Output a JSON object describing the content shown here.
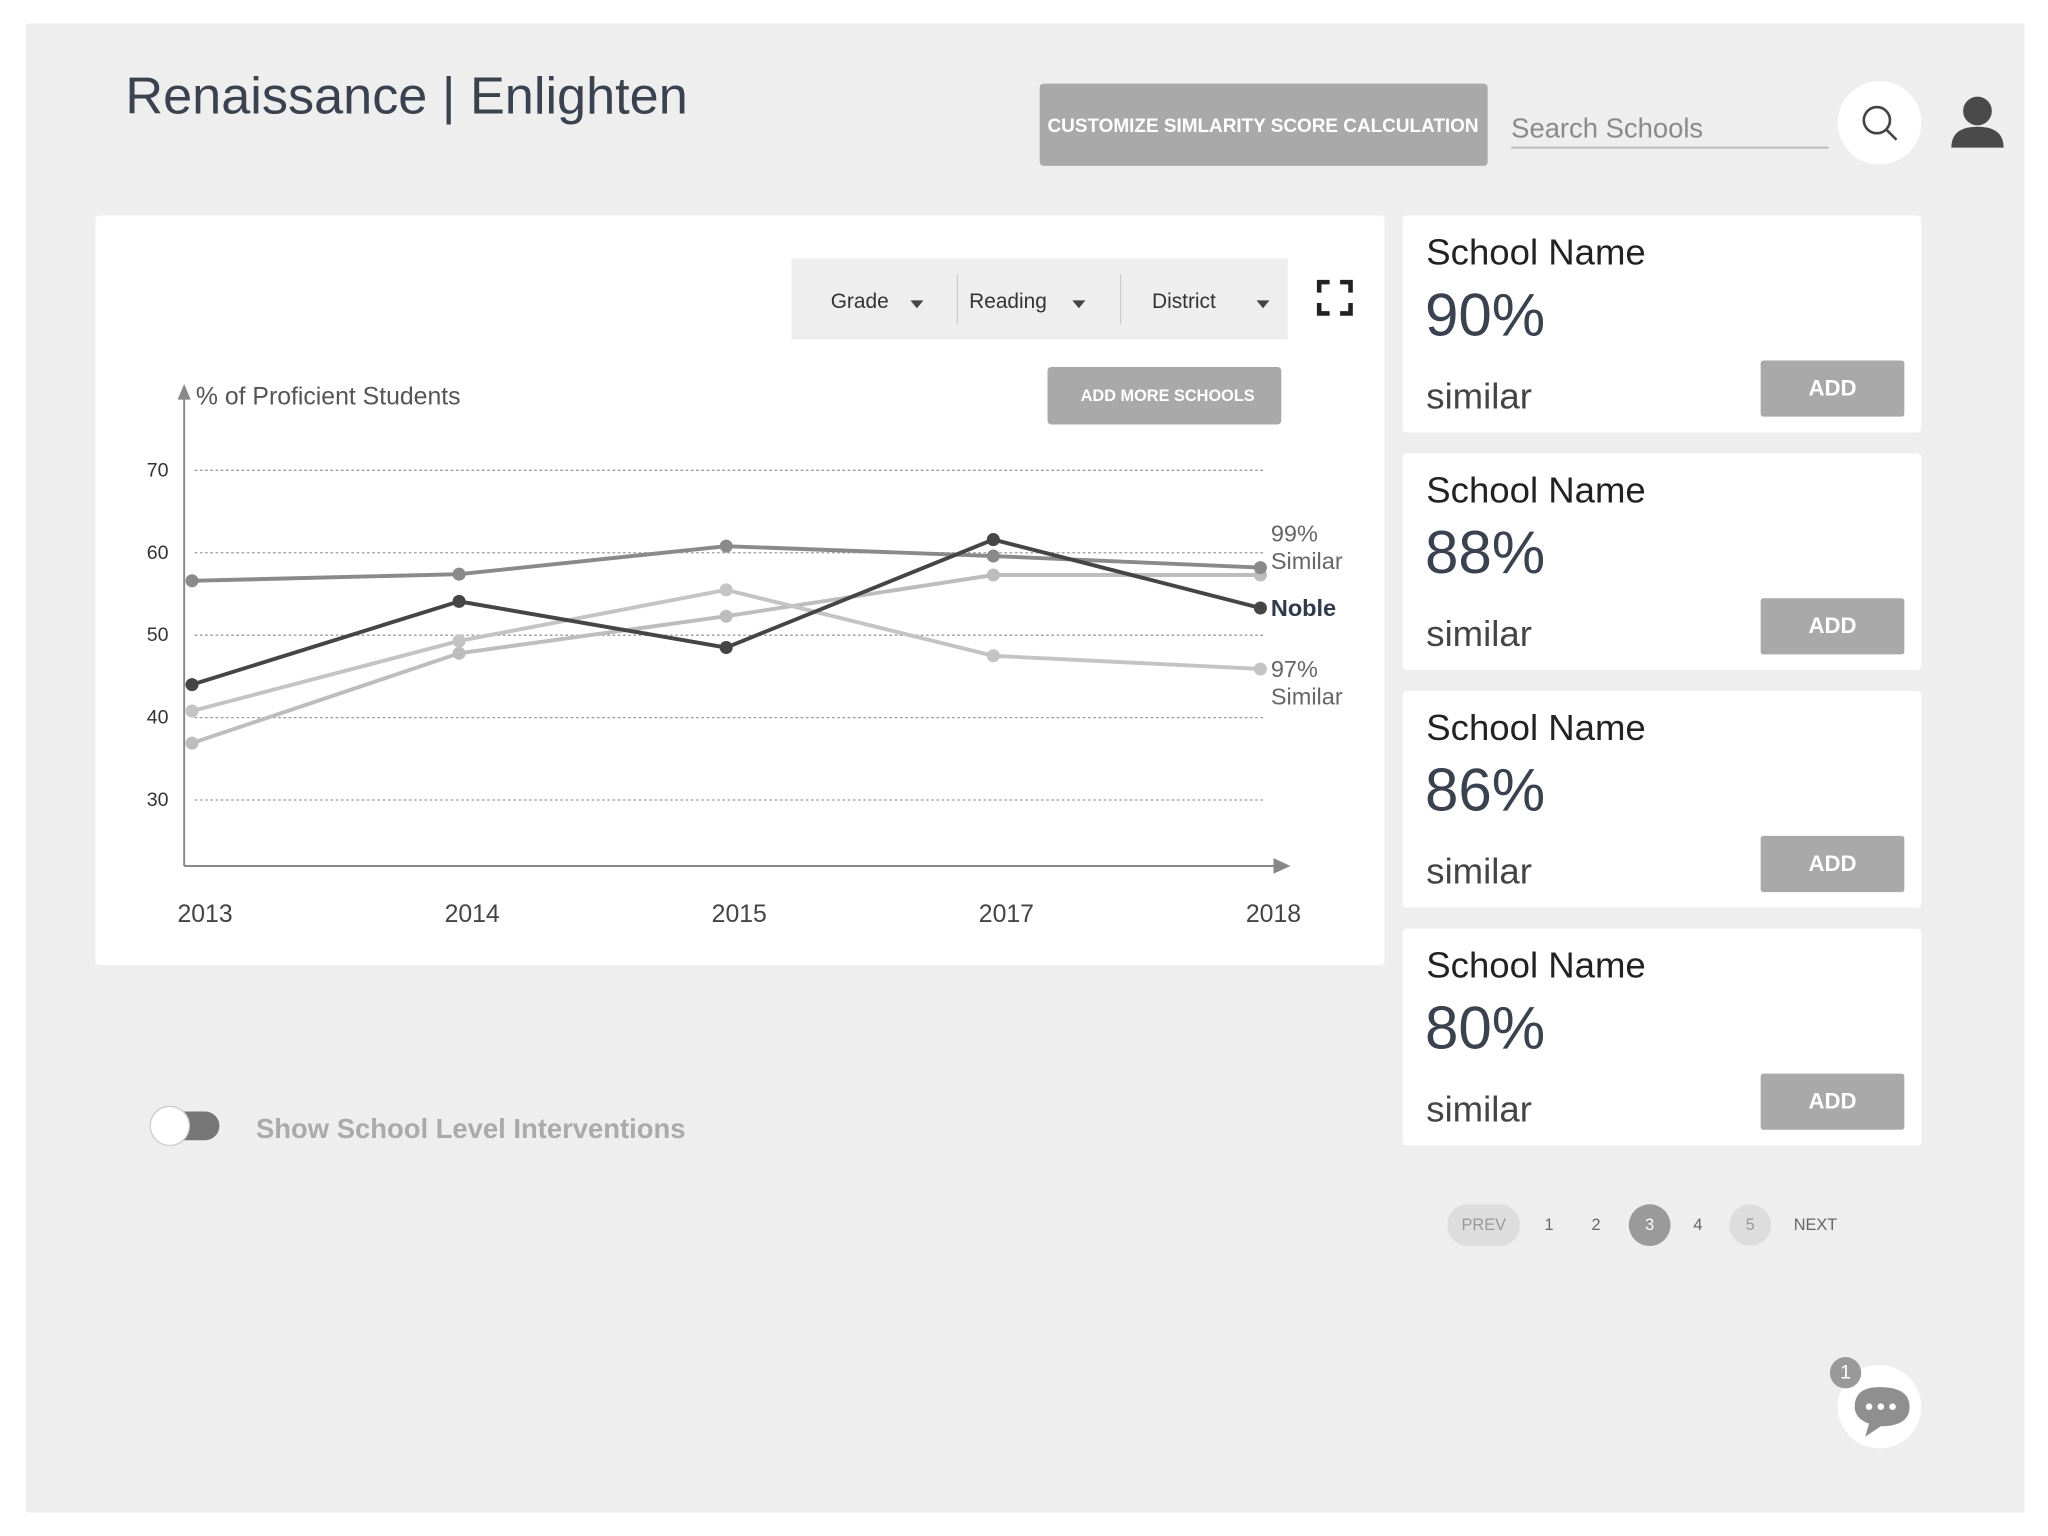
{
  "header": {
    "title": "Renaissance | Enlighten",
    "customize_button": "CUSTOMIZE SIMLARITY SCORE CALCULATION",
    "search_placeholder": "Search Schools"
  },
  "filters": [
    "Grade",
    "Reading",
    "District"
  ],
  "add_more_button": "ADD MORE SCHOOLS",
  "chart_data": {
    "type": "line",
    "y_label": "% of Proficient Students",
    "categories": [
      "2013",
      "2014",
      "2015",
      "2017",
      "2018"
    ],
    "ylim": [
      22,
      80
    ],
    "yticks": [
      30,
      40,
      50,
      60,
      70
    ],
    "grid": true,
    "series": [
      {
        "color": "#bdbdbd",
        "values": [
          36.9,
          47.8,
          52.3,
          57.3,
          57.3
        ]
      },
      {
        "label_lines": [
          "97%",
          "Similar"
        ],
        "color": "#c4c4c4",
        "values": [
          40.8,
          49.3,
          55.5,
          47.5,
          45.9
        ]
      },
      {
        "label_lines": [
          "99%",
          "Similar"
        ],
        "color": "#8a8a8a",
        "values": [
          56.6,
          57.4,
          60.8,
          59.6,
          58.2
        ]
      },
      {
        "name": "Noble",
        "color": "#454545",
        "values": [
          44.0,
          54.1,
          48.5,
          61.6,
          53.3
        ]
      }
    ]
  },
  "schools": [
    {
      "name": "School Name",
      "similarity": "90%",
      "suffix": "similar",
      "button": "ADD"
    },
    {
      "name": "School Name",
      "similarity": "88%",
      "suffix": "similar",
      "button": "ADD"
    },
    {
      "name": "School Name",
      "similarity": "86%",
      "suffix": "similar",
      "button": "ADD"
    },
    {
      "name": "School Name",
      "similarity": "80%",
      "suffix": "similar",
      "button": "ADD"
    }
  ],
  "toggle": {
    "label": "Show School Level Interventions",
    "on": false
  },
  "pagination": {
    "prev": "PREV",
    "pages": [
      "1",
      "2",
      "3",
      "4",
      "5"
    ],
    "current_index": 2,
    "highlighted_index": 4,
    "next": "NEXT"
  },
  "chat": {
    "badge": "1"
  }
}
